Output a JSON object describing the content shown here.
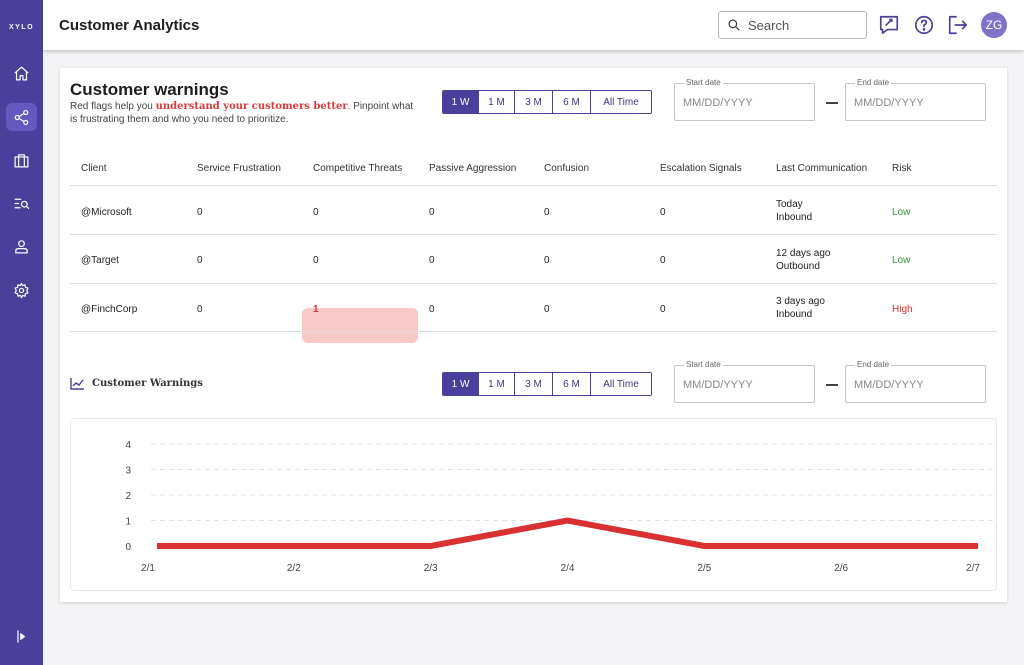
{
  "sidebar": {
    "logo": "XYLO",
    "items": [
      {
        "name": "home-icon"
      },
      {
        "name": "share-icon"
      },
      {
        "name": "briefcase-icon"
      },
      {
        "name": "search-list-icon"
      },
      {
        "name": "user-icon"
      },
      {
        "name": "gear-icon"
      }
    ],
    "active_index": 1,
    "expand_icon": "expand-icon"
  },
  "header": {
    "title": "Customer Analytics",
    "search_placeholder": "Search",
    "avatar_initials": "ZG"
  },
  "warnings": {
    "title": "Customer warnings",
    "desc_pre": "Red flags help you ",
    "desc_highlight": "understand your customers better",
    "desc_post": ". Pinpoint what is frustrating them and who you need to prioritize.",
    "ranges": [
      "1 W",
      "1 M",
      "3 M",
      "6 M",
      "All Time"
    ],
    "selected_range": 0,
    "start_label": "Start date",
    "end_label": "End date",
    "date_placeholder": "MM/DD/YYYY"
  },
  "table": {
    "columns": [
      "Client",
      "Service Frustration",
      "Competitive Threats",
      "Passive Aggression",
      "Confusion",
      "Escalation Signals",
      "Last Communication",
      "Risk"
    ],
    "rows": [
      {
        "client": "@Microsoft",
        "service": "0",
        "competitive": "0",
        "passive": "0",
        "confusion": "0",
        "escalation": "0",
        "last_time": "Today",
        "last_dir": "Inbound",
        "risk": "Low"
      },
      {
        "client": "@Target",
        "service": "0",
        "competitive": "0",
        "passive": "0",
        "confusion": "0",
        "escalation": "0",
        "last_time": "12 days ago",
        "last_dir": "Outbound",
        "risk": "Low"
      },
      {
        "client": "@FinchCorp",
        "service": "0",
        "competitive": "1",
        "passive": "0",
        "confusion": "0",
        "escalation": "0",
        "last_time": "3 days ago",
        "last_dir": "Inbound",
        "risk": "High"
      }
    ]
  },
  "chart_section": {
    "title": "Customer Warnings",
    "ranges": [
      "1 W",
      "1 M",
      "3 M",
      "6 M",
      "All Time"
    ],
    "selected_range": 0,
    "start_label": "Start date",
    "end_label": "End date",
    "date_placeholder": "MM/DD/YYYY"
  },
  "chart_data": {
    "type": "line",
    "x": [
      "2/1",
      "2/2",
      "2/3",
      "2/4",
      "2/5",
      "2/6",
      "2/7"
    ],
    "series": [
      {
        "values": [
          0,
          0,
          0,
          1,
          0,
          0,
          0
        ],
        "color": "#d93030"
      }
    ],
    "yticks": [
      0,
      1,
      2,
      3,
      4
    ],
    "ylim": [
      0,
      4
    ],
    "grid": true
  },
  "colors": {
    "brand": "#4a3f9b",
    "danger": "#d83030",
    "success": "#2f9a3a"
  }
}
